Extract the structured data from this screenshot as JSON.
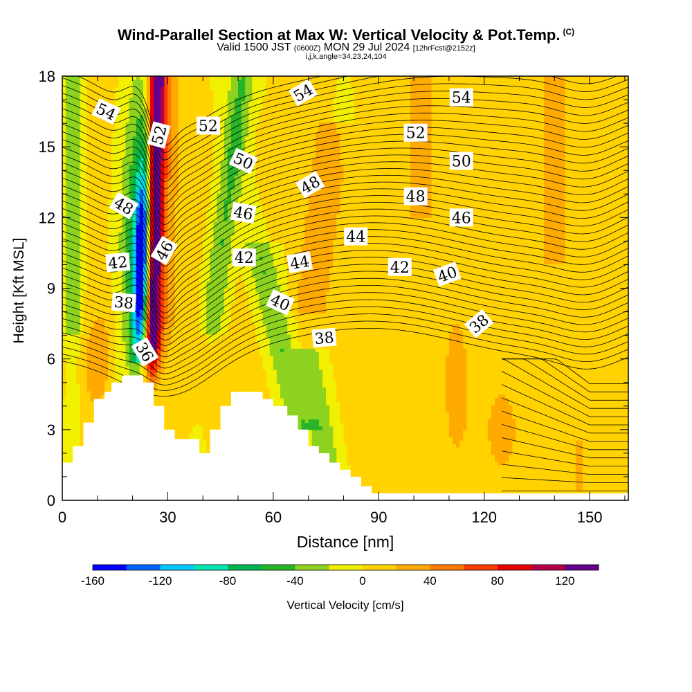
{
  "header": {
    "title": "Wind-Parallel Section at Max W: Vertical Velocity & Pot.Temp.",
    "copyright": "(C)",
    "valid_prefix": "Valid 1500 JST",
    "valid_utc": "(0600Z)",
    "valid_date": "MON 29 Jul 2024",
    "forecast": "[12hrFcst@2152z]",
    "indices": "i,j,k,angle=34,23,24,104"
  },
  "chart_data": {
    "type": "heatmap",
    "xlabel": "Distance [nm]",
    "ylabel": "Height [Kft MSL]",
    "xlim": [
      0,
      161
    ],
    "ylim": [
      0,
      18
    ],
    "x_ticks": [
      "0",
      "30",
      "60",
      "90",
      "120",
      "150"
    ],
    "y_ticks": [
      "0",
      "3",
      "6",
      "9",
      "12",
      "15",
      "18"
    ],
    "colorbar": {
      "label": "Vertical Velocity [cm/s]",
      "min": -160,
      "max": 140,
      "step": 20,
      "tick_labels": [
        "-160",
        "-120",
        "-80",
        "-40",
        "0",
        "40",
        "80",
        "120"
      ],
      "colors": [
        "#0000ff",
        "#0064ff",
        "#00c8ff",
        "#00e6b4",
        "#00b450",
        "#28b428",
        "#8cd21e",
        "#f0f000",
        "#ffd200",
        "#ffaa00",
        "#ff7800",
        "#ff3c00",
        "#e60000",
        "#b40046",
        "#64008c"
      ]
    },
    "terrain_kft": [
      [
        0,
        1.6
      ],
      [
        3,
        1.6
      ],
      [
        3,
        2.3
      ],
      [
        6,
        2.3
      ],
      [
        6,
        3.3
      ],
      [
        9,
        3.3
      ],
      [
        9,
        4.3
      ],
      [
        12,
        4.3
      ],
      [
        12,
        4.6
      ],
      [
        14,
        4.6
      ],
      [
        14,
        5.0
      ],
      [
        17,
        5.0
      ],
      [
        17,
        5.3
      ],
      [
        23,
        5.3
      ],
      [
        23,
        5.0
      ],
      [
        26,
        5.0
      ],
      [
        26,
        4.0
      ],
      [
        29,
        4.0
      ],
      [
        29,
        3.0
      ],
      [
        32,
        3.0
      ],
      [
        32,
        2.6
      ],
      [
        39,
        2.6
      ],
      [
        39,
        2.0
      ],
      [
        42,
        2.0
      ],
      [
        42,
        3.0
      ],
      [
        45,
        3.0
      ],
      [
        45,
        4.0
      ],
      [
        48,
        4.0
      ],
      [
        48,
        4.6
      ],
      [
        57,
        4.6
      ],
      [
        57,
        4.3
      ],
      [
        60,
        4.3
      ],
      [
        60,
        4.0
      ],
      [
        64,
        4.0
      ],
      [
        64,
        3.6
      ],
      [
        67,
        3.6
      ],
      [
        67,
        3.0
      ],
      [
        70,
        3.0
      ],
      [
        70,
        2.3
      ],
      [
        73,
        2.3
      ],
      [
        73,
        2.0
      ],
      [
        76,
        2.0
      ],
      [
        76,
        1.6
      ],
      [
        79,
        1.6
      ],
      [
        79,
        1.3
      ],
      [
        82,
        1.3
      ],
      [
        82,
        1.0
      ],
      [
        85,
        1.0
      ],
      [
        85,
        0.6
      ],
      [
        88,
        0.6
      ],
      [
        88,
        0.3
      ],
      [
        161,
        0.3
      ]
    ],
    "theta_labels": [
      {
        "text": "54",
        "x": 12.5,
        "y": 16.5,
        "angle": 25
      },
      {
        "text": "52",
        "x": 27.5,
        "y": 15.5,
        "angle": -75
      },
      {
        "text": "52",
        "x": 41.5,
        "y": 15.9,
        "angle": 0
      },
      {
        "text": "54",
        "x": 68.5,
        "y": 17.3,
        "angle": -30
      },
      {
        "text": "54",
        "x": 113.5,
        "y": 17.1,
        "angle": 0
      },
      {
        "text": "52",
        "x": 100.5,
        "y": 15.6,
        "angle": 0
      },
      {
        "text": "50",
        "x": 51.5,
        "y": 14.4,
        "angle": 25
      },
      {
        "text": "50",
        "x": 113.5,
        "y": 14.4,
        "angle": 0
      },
      {
        "text": "48",
        "x": 17.5,
        "y": 12.5,
        "angle": 30
      },
      {
        "text": "48",
        "x": 70.5,
        "y": 13.4,
        "angle": -30
      },
      {
        "text": "48",
        "x": 100.5,
        "y": 12.9,
        "angle": 0
      },
      {
        "text": "46",
        "x": 51.5,
        "y": 12.2,
        "angle": 10
      },
      {
        "text": "46",
        "x": 113.5,
        "y": 12.0,
        "angle": 0
      },
      {
        "text": "44",
        "x": 83.5,
        "y": 11.2,
        "angle": 0
      },
      {
        "text": "46",
        "x": 29.0,
        "y": 10.6,
        "angle": -60
      },
      {
        "text": "42",
        "x": 15.8,
        "y": 10.1,
        "angle": -5
      },
      {
        "text": "42",
        "x": 51.7,
        "y": 10.3,
        "angle": 0
      },
      {
        "text": "44",
        "x": 67.5,
        "y": 10.1,
        "angle": -10
      },
      {
        "text": "42",
        "x": 96.0,
        "y": 9.9,
        "angle": 0
      },
      {
        "text": "40",
        "x": 109.5,
        "y": 9.6,
        "angle": -20
      },
      {
        "text": "38",
        "x": 17.5,
        "y": 8.4,
        "angle": 5
      },
      {
        "text": "40",
        "x": 62.0,
        "y": 8.4,
        "angle": 25
      },
      {
        "text": "38",
        "x": 118.5,
        "y": 7.5,
        "angle": -40
      },
      {
        "text": "38",
        "x": 74.5,
        "y": 6.9,
        "angle": -5
      },
      {
        "text": "36",
        "x": 23.5,
        "y": 6.3,
        "angle": 60
      }
    ]
  }
}
